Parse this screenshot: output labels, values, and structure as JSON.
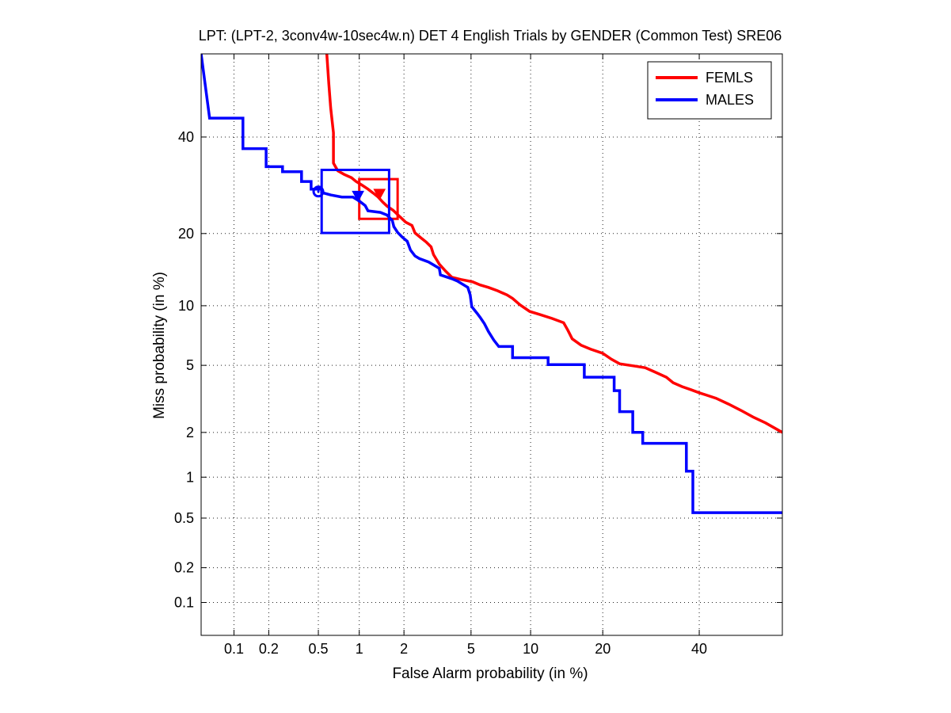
{
  "chart_data": {
    "type": "line",
    "title": "LPT: (LPT-2, 3conv4w-10sec4w.n) DET 4 English Trials by GENDER (Common Test) SRE06",
    "xlabel": "False Alarm probability (in %)",
    "ylabel": "Miss probability (in %)",
    "x_scale": "normal-deviate (probit)",
    "y_scale": "normal-deviate (probit)",
    "xlim": [
      0.05,
      60
    ],
    "ylim": [
      0.05,
      60
    ],
    "x_ticks": [
      0.1,
      0.2,
      0.5,
      1,
      2,
      5,
      10,
      20,
      40
    ],
    "x_tick_labels": [
      "0.1",
      "0.2",
      "0.5",
      "1",
      "2",
      "5",
      "10",
      "20",
      "40"
    ],
    "y_ticks": [
      0.1,
      0.2,
      0.5,
      1,
      2,
      5,
      10,
      20,
      40
    ],
    "y_tick_labels": [
      "0.1",
      "0.2",
      "0.5",
      "1",
      "2",
      "5",
      "10",
      "20",
      "40"
    ],
    "grid": true,
    "legend_position": "top-right",
    "series": [
      {
        "name": "FEMLS",
        "color": "#ff0000",
        "points": [
          [
            0.58,
            60
          ],
          [
            0.6,
            53
          ],
          [
            0.62,
            47
          ],
          [
            0.65,
            41
          ],
          [
            0.65,
            34
          ],
          [
            0.7,
            32.3
          ],
          [
            0.78,
            31.5
          ],
          [
            0.88,
            30.8
          ],
          [
            0.95,
            30
          ],
          [
            1.05,
            29.2
          ],
          [
            1.15,
            28.4
          ],
          [
            1.25,
            27.6
          ],
          [
            1.35,
            26.8
          ],
          [
            1.45,
            25.8
          ],
          [
            1.55,
            25
          ],
          [
            1.7,
            24.2
          ],
          [
            1.85,
            23.2
          ],
          [
            2.05,
            22
          ],
          [
            2.25,
            21.4
          ],
          [
            2.35,
            20.1
          ],
          [
            2.55,
            19.3
          ],
          [
            2.75,
            18.6
          ],
          [
            2.95,
            17.8
          ],
          [
            3.05,
            16.6
          ],
          [
            3.3,
            15.2
          ],
          [
            3.6,
            14.2
          ],
          [
            3.9,
            13.4
          ],
          [
            4.4,
            13.1
          ],
          [
            5.1,
            12.8
          ],
          [
            5.6,
            12.4
          ],
          [
            6.2,
            12.1
          ],
          [
            6.9,
            11.7
          ],
          [
            7.7,
            11.2
          ],
          [
            8.2,
            10.8
          ],
          [
            8.9,
            10.1
          ],
          [
            9.9,
            9.4
          ],
          [
            11,
            9.1
          ],
          [
            12.5,
            8.7
          ],
          [
            14,
            8.3
          ],
          [
            14.6,
            7.6
          ],
          [
            15.2,
            6.9
          ],
          [
            16.5,
            6.4
          ],
          [
            18,
            6.1
          ],
          [
            20,
            5.8
          ],
          [
            21.5,
            5.4
          ],
          [
            23,
            5.1
          ],
          [
            26,
            4.95
          ],
          [
            28,
            4.85
          ],
          [
            30,
            4.6
          ],
          [
            32.5,
            4.3
          ],
          [
            34,
            4.0
          ],
          [
            36,
            3.8
          ],
          [
            38,
            3.65
          ],
          [
            40,
            3.5
          ],
          [
            44,
            3.25
          ],
          [
            47,
            3.0
          ],
          [
            50,
            2.75
          ],
          [
            53,
            2.5
          ],
          [
            56,
            2.3
          ],
          [
            60,
            2.0
          ]
        ],
        "min_dcf_point": [
          1.38,
          27.4
        ],
        "min_dcf_marker": "triangle-down",
        "confidence_box": {
          "x": [
            1.0,
            1.82
          ],
          "y": [
            22.6,
            30.5
          ]
        }
      },
      {
        "name": "MALES",
        "color": "#0000ff",
        "points": [
          [
            0.05,
            60
          ],
          [
            0.06,
            44.5
          ],
          [
            0.12,
            44.5
          ],
          [
            0.12,
            37.3
          ],
          [
            0.19,
            37.3
          ],
          [
            0.19,
            33.2
          ],
          [
            0.26,
            33.2
          ],
          [
            0.26,
            32.1
          ],
          [
            0.37,
            32.1
          ],
          [
            0.37,
            30
          ],
          [
            0.44,
            30
          ],
          [
            0.44,
            28.4
          ],
          [
            0.53,
            28.4
          ],
          [
            0.53,
            27.7
          ],
          [
            0.62,
            27.2
          ],
          [
            0.75,
            26.8
          ],
          [
            0.9,
            26.8
          ],
          [
            1.0,
            26
          ],
          [
            1.1,
            25.1
          ],
          [
            1.15,
            24.1
          ],
          [
            1.4,
            23.8
          ],
          [
            1.55,
            23.3
          ],
          [
            1.68,
            22.3
          ],
          [
            1.72,
            21.2
          ],
          [
            1.82,
            20.2
          ],
          [
            1.95,
            19.4
          ],
          [
            2.1,
            18.7
          ],
          [
            2.2,
            17.3
          ],
          [
            2.35,
            16.4
          ],
          [
            2.5,
            16
          ],
          [
            2.85,
            15.5
          ],
          [
            3.3,
            14.6
          ],
          [
            3.35,
            13.7
          ],
          [
            3.9,
            13.2
          ],
          [
            4.2,
            12.9
          ],
          [
            4.8,
            12.1
          ],
          [
            4.95,
            11.2
          ],
          [
            5.05,
            9.9
          ],
          [
            5.4,
            9.2
          ],
          [
            5.6,
            8.8
          ],
          [
            5.9,
            8.2
          ],
          [
            6.2,
            7.5
          ],
          [
            6.6,
            6.8
          ],
          [
            7.0,
            6.3
          ],
          [
            8.2,
            6.3
          ],
          [
            8.2,
            5.5
          ],
          [
            12,
            5.5
          ],
          [
            12,
            5.05
          ],
          [
            17,
            5.05
          ],
          [
            17,
            4.3
          ],
          [
            22,
            4.3
          ],
          [
            22,
            3.6
          ],
          [
            23,
            3.6
          ],
          [
            23,
            2.7
          ],
          [
            25.5,
            2.7
          ],
          [
            25.5,
            2.0
          ],
          [
            27.5,
            2.0
          ],
          [
            27.5,
            1.7
          ],
          [
            37,
            1.7
          ],
          [
            37,
            1.1
          ],
          [
            38.5,
            1.1
          ],
          [
            38.5,
            0.55
          ],
          [
            60,
            0.55
          ]
        ],
        "min_dcf_point": [
          0.98,
          27.0
        ],
        "min_dcf_marker": "triangle-down",
        "actual_dcf_point": [
          0.5,
          27.9
        ],
        "actual_dcf_marker": "circle",
        "confidence_box": {
          "x": [
            0.53,
            1.6
          ],
          "y": [
            20.1,
            32.5
          ]
        }
      }
    ]
  }
}
